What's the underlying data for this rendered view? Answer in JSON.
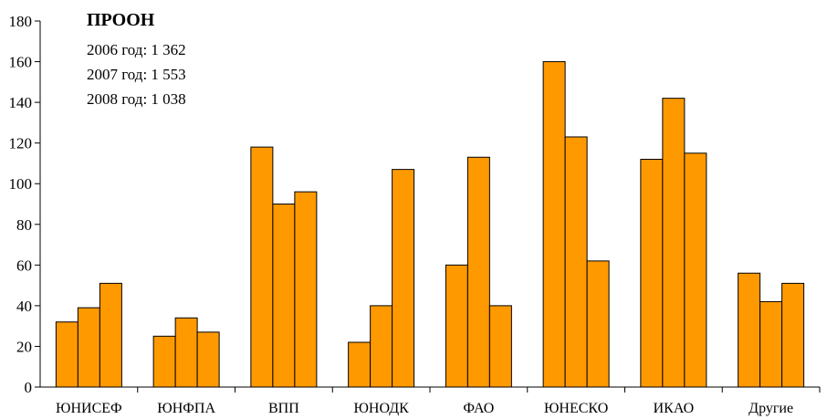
{
  "chart_data": {
    "type": "bar",
    "title": "",
    "xlabel": "",
    "ylabel": "",
    "ylim": [
      0,
      180
    ],
    "yticks": [
      0,
      20,
      40,
      60,
      80,
      100,
      120,
      140,
      160,
      180
    ],
    "grid": false,
    "legend": "none",
    "bar_color": "#FF9900",
    "categories": [
      "ЮНИСЕФ",
      "ЮНФПА",
      "ВПП",
      "ЮНОДК",
      "ФАО",
      "ЮНЕСКО",
      "ИКАО",
      "Другие"
    ],
    "series": [
      {
        "values": [
          32,
          25,
          118,
          22,
          60,
          160,
          112,
          56
        ]
      },
      {
        "values": [
          39,
          34,
          90,
          40,
          113,
          123,
          142,
          42
        ]
      },
      {
        "values": [
          51,
          27,
          96,
          107,
          40,
          62,
          115,
          51
        ]
      }
    ],
    "annotation": {
      "title": "ПРООН",
      "lines": [
        "2006 год: 1 362",
        "2007 год: 1 553",
        "2008 год: 1 038"
      ]
    }
  }
}
